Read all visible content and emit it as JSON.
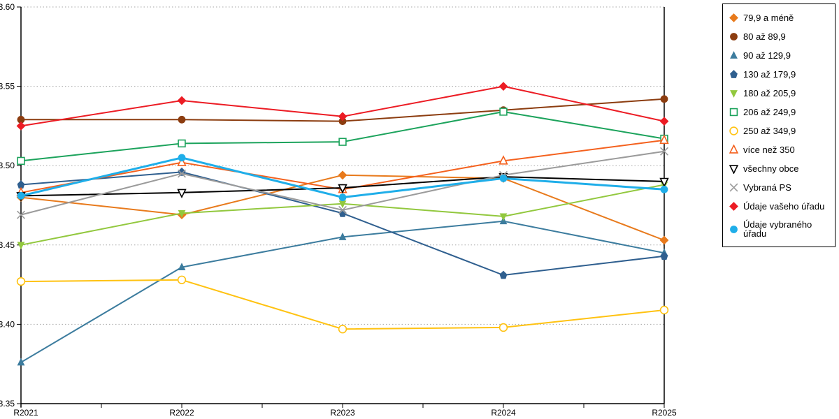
{
  "background": "#FFFFFF",
  "chart_data": {
    "type": "line",
    "title": "",
    "xlabel": "",
    "ylabel": "",
    "categories": [
      "R2021",
      "R2022",
      "R2023",
      "R2024",
      "R2025"
    ],
    "ylim": [
      3.35,
      3.6
    ],
    "ytick_step": 0.05,
    "ytick_labels": [
      "3.35",
      "3.40",
      "3.45",
      "3.50",
      "3.55",
      "3.60"
    ],
    "grid": "horizontal-dotted",
    "gridline_color": "#A6A6A6",
    "axis_color": "#000000",
    "legend_position": "right",
    "legend_border_color": "#000000",
    "series": [
      {
        "name": "79,9 a méně",
        "color": "#E87A1C",
        "marker": "diamond",
        "fill": "filled",
        "line_width": 2,
        "values": [
          3.48,
          3.469,
          3.494,
          3.492,
          3.453
        ]
      },
      {
        "name": "80 až 89,9",
        "color": "#8C3D10",
        "marker": "circle",
        "fill": "filled",
        "line_width": 2,
        "values": [
          3.529,
          3.529,
          3.528,
          3.535,
          3.542
        ]
      },
      {
        "name": "90 až 129,9",
        "color": "#3C7C9E",
        "marker": "triangle-up",
        "fill": "filled",
        "line_width": 2,
        "values": [
          3.376,
          3.436,
          3.455,
          3.465,
          3.445
        ]
      },
      {
        "name": "130 až 179,9",
        "color": "#2F5F8F",
        "marker": "pentagon",
        "fill": "filled",
        "line_width": 2,
        "values": [
          3.488,
          3.496,
          3.47,
          3.431,
          3.443
        ]
      },
      {
        "name": "180 až 205,9",
        "color": "#92C83E",
        "marker": "triangle-down",
        "fill": "filled",
        "line_width": 2,
        "values": [
          3.45,
          3.47,
          3.476,
          3.468,
          3.488
        ]
      },
      {
        "name": "206 až 249,9",
        "color": "#1CA35C",
        "marker": "square",
        "fill": "open",
        "line_width": 2,
        "values": [
          3.503,
          3.514,
          3.515,
          3.534,
          3.517
        ]
      },
      {
        "name": "250 až 349,9",
        "color": "#FFC211",
        "marker": "circle",
        "fill": "open",
        "line_width": 2,
        "values": [
          3.427,
          3.428,
          3.397,
          3.398,
          3.409
        ]
      },
      {
        "name": "více než 350",
        "color": "#F4611E",
        "marker": "triangle-up",
        "fill": "open",
        "line_width": 2,
        "values": [
          3.483,
          3.502,
          3.485,
          3.503,
          3.516
        ]
      },
      {
        "name": "všechny obce",
        "color": "#000000",
        "marker": "triangle-down",
        "fill": "open",
        "line_width": 2,
        "values": [
          3.481,
          3.483,
          3.486,
          3.493,
          3.49
        ]
      },
      {
        "name": "Vybraná PS",
        "color": "#9B9B9B",
        "marker": "x",
        "fill": "open",
        "line_width": 2,
        "values": [
          3.469,
          3.495,
          3.472,
          3.494,
          3.509
        ]
      },
      {
        "name": "Údaje vašeho úřadu",
        "color": "#EC1C24",
        "marker": "diamond",
        "fill": "filled",
        "line_width": 2,
        "values": [
          3.525,
          3.541,
          3.531,
          3.55,
          3.528
        ]
      },
      {
        "name": "Údaje vybraného úřadu",
        "color": "#1FAEE9",
        "marker": "circle",
        "fill": "filled",
        "line_width": 3,
        "values": [
          3.481,
          3.505,
          3.48,
          3.492,
          3.485
        ]
      }
    ]
  }
}
